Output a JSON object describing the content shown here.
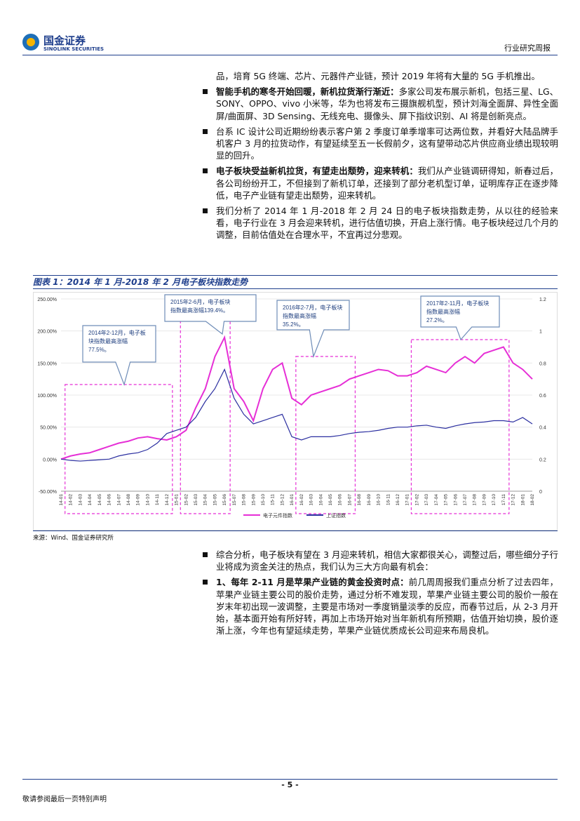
{
  "header": {
    "logo_cn": "国金证券",
    "logo_en": "SINOLINK SECURITIES",
    "report_type": "行业研究周报"
  },
  "body_top": [
    {
      "text": "品，培育 5G 终端、芯片、元器件产业链，预计 2019 年将有大量的 5G 手机推出。"
    },
    {
      "bold": "智能手机的寒冬开始回暖，新机拉货渐行渐近：",
      "text": "多家公司发布展示新机，包括三星、LG、SONY、OPPO、vivo 小米等，华为也将发布三摄旗舰机型，预计刘海全面屏、异性全面屏/曲面屏、3D Sensing、无线充电、摄像头、屏下指纹识别、AI 将是创新亮点。"
    },
    {
      "text": "台系 IC 设计公司近期纷纷表示客户第 2 季度订单季增率可达两位数，并看好大陆品牌手机客户 3 月的拉货动作，有望延续至五一长假前夕，这有望带动芯片供应商业绩出现较明显的回升。"
    },
    {
      "bold": "电子板块受益新机拉货，有望走出颓势，迎来转机：",
      "text": "我们从产业链调研得知，新春过后，各公司纷纷开工，不但接到了新机订单，还接到了部分老机型订单，证明库存正在逐步降低，电子产业链有望走出颓势，迎来转机。"
    },
    {
      "text": "我们分析了 2014 年 1 月-2018 年 2 月 24 日的电子板块指数走势，从以往的经验来看，电子行业在 3 月会迎来转机，进行估值切换，开启上涨行情。电子板块经过几个月的调整，目前估值处在合理水平，不宜再过分悲观。"
    }
  ],
  "figure_title": "图表 1：2014 年 1 月-2018 年 2 月电子板块指数走势",
  "chart_data": {
    "type": "line",
    "categories": [
      "14-01",
      "14-02",
      "14-03",
      "14-04",
      "14-05",
      "14-06",
      "14-07",
      "14-08",
      "14-09",
      "14-10",
      "14-11",
      "14-12",
      "15-01",
      "15-02",
      "15-03",
      "15-04",
      "15-05",
      "15-06",
      "15-07",
      "15-08",
      "15-09",
      "15-10",
      "15-11",
      "15-12",
      "16-01",
      "16-02",
      "16-03",
      "16-04",
      "16-05",
      "16-06",
      "16-07",
      "16-08",
      "16-09",
      "16-10",
      "16-11",
      "16-12",
      "17-01",
      "17-02",
      "17-03",
      "17-04",
      "17-05",
      "17-06",
      "17-07",
      "17-08",
      "17-09",
      "17-10",
      "17-11",
      "17-12",
      "18-01",
      "18-02"
    ],
    "series": [
      {
        "name": "电子元件指数",
        "color": "#e62fd6",
        "values": [
          0,
          5,
          8,
          10,
          15,
          20,
          25,
          28,
          33,
          35,
          32,
          30,
          35,
          45,
          80,
          110,
          160,
          190,
          110,
          90,
          60,
          110,
          140,
          150,
          95,
          85,
          100,
          105,
          110,
          115,
          125,
          130,
          135,
          140,
          138,
          130,
          130,
          135,
          145,
          140,
          135,
          150,
          160,
          150,
          165,
          170,
          175,
          150,
          140,
          125
        ]
      },
      {
        "name": "上证指数",
        "color": "#2b2fa0",
        "values": [
          0,
          -2,
          -3,
          -2,
          -1,
          0,
          5,
          8,
          10,
          15,
          25,
          40,
          45,
          50,
          65,
          90,
          110,
          140,
          95,
          70,
          55,
          60,
          65,
          70,
          35,
          30,
          35,
          35,
          35,
          37,
          40,
          42,
          43,
          45,
          48,
          50,
          50,
          52,
          53,
          50,
          48,
          52,
          55,
          57,
          58,
          60,
          60,
          58,
          65,
          55
        ]
      }
    ],
    "ylim": [
      -50,
      250
    ],
    "yticks": [
      {
        "value": -50,
        "label": "-50.00%"
      },
      {
        "value": 0,
        "label": "0.00%"
      },
      {
        "value": 50,
        "label": "50.00%"
      },
      {
        "value": 100,
        "label": "100.00%"
      },
      {
        "value": 150,
        "label": "150.00%"
      },
      {
        "value": 200,
        "label": "200.00%"
      },
      {
        "value": 250,
        "label": "250.00%"
      }
    ],
    "y2lim": [
      0,
      1.2
    ],
    "y2ticks": [
      0,
      0.2,
      0.4,
      0.6,
      0.8,
      1,
      1.2
    ],
    "legend": "bottom",
    "annotations": [
      [
        "2014年2-12月，电子板",
        "块指数最高涨幅",
        "77.5%。"
      ],
      [
        "2015年2-6月，电子板块",
        "指数最高涨幅139.4%。"
      ],
      [
        "2016年2-7月，电子板块",
        "指数最高涨幅",
        "35.2%。"
      ],
      [
        "2017年2-11月，电子板块",
        "指数最高涨幅",
        "27.2%。"
      ]
    ]
  },
  "source": "来源：Wind、国金证券研究所",
  "body_bottom": [
    {
      "text": "综合分析，电子板块有望在 3 月迎来转机，相信大家都很关心，调整过后，哪些细分子行业将成为资金关注的热点，我们认为三大方向最有机会："
    },
    {
      "bold": "1、每年 2-11 月是苹果产业链的黄金投资时点：",
      "text": "前几周周报我们重点分析了过去四年，苹果产业链主要公司的股价走势，通过分析不难发现，苹果产业链主要公司的股价一般在岁末年初出现一波调整，主要是市场对一季度销量淡季的反应，而春节过后，从 2-3 月开始，基本面开始有所好转，再加上市场开始对当年新机有所预期，估值开始切换，股价逐渐上涨，今年也有望延续走势，苹果产业链优质成长公司迎来布局良机。"
    }
  ],
  "footer": {
    "page": "- 5 -",
    "disclaimer": "敬请参阅最后一页特别声明"
  }
}
